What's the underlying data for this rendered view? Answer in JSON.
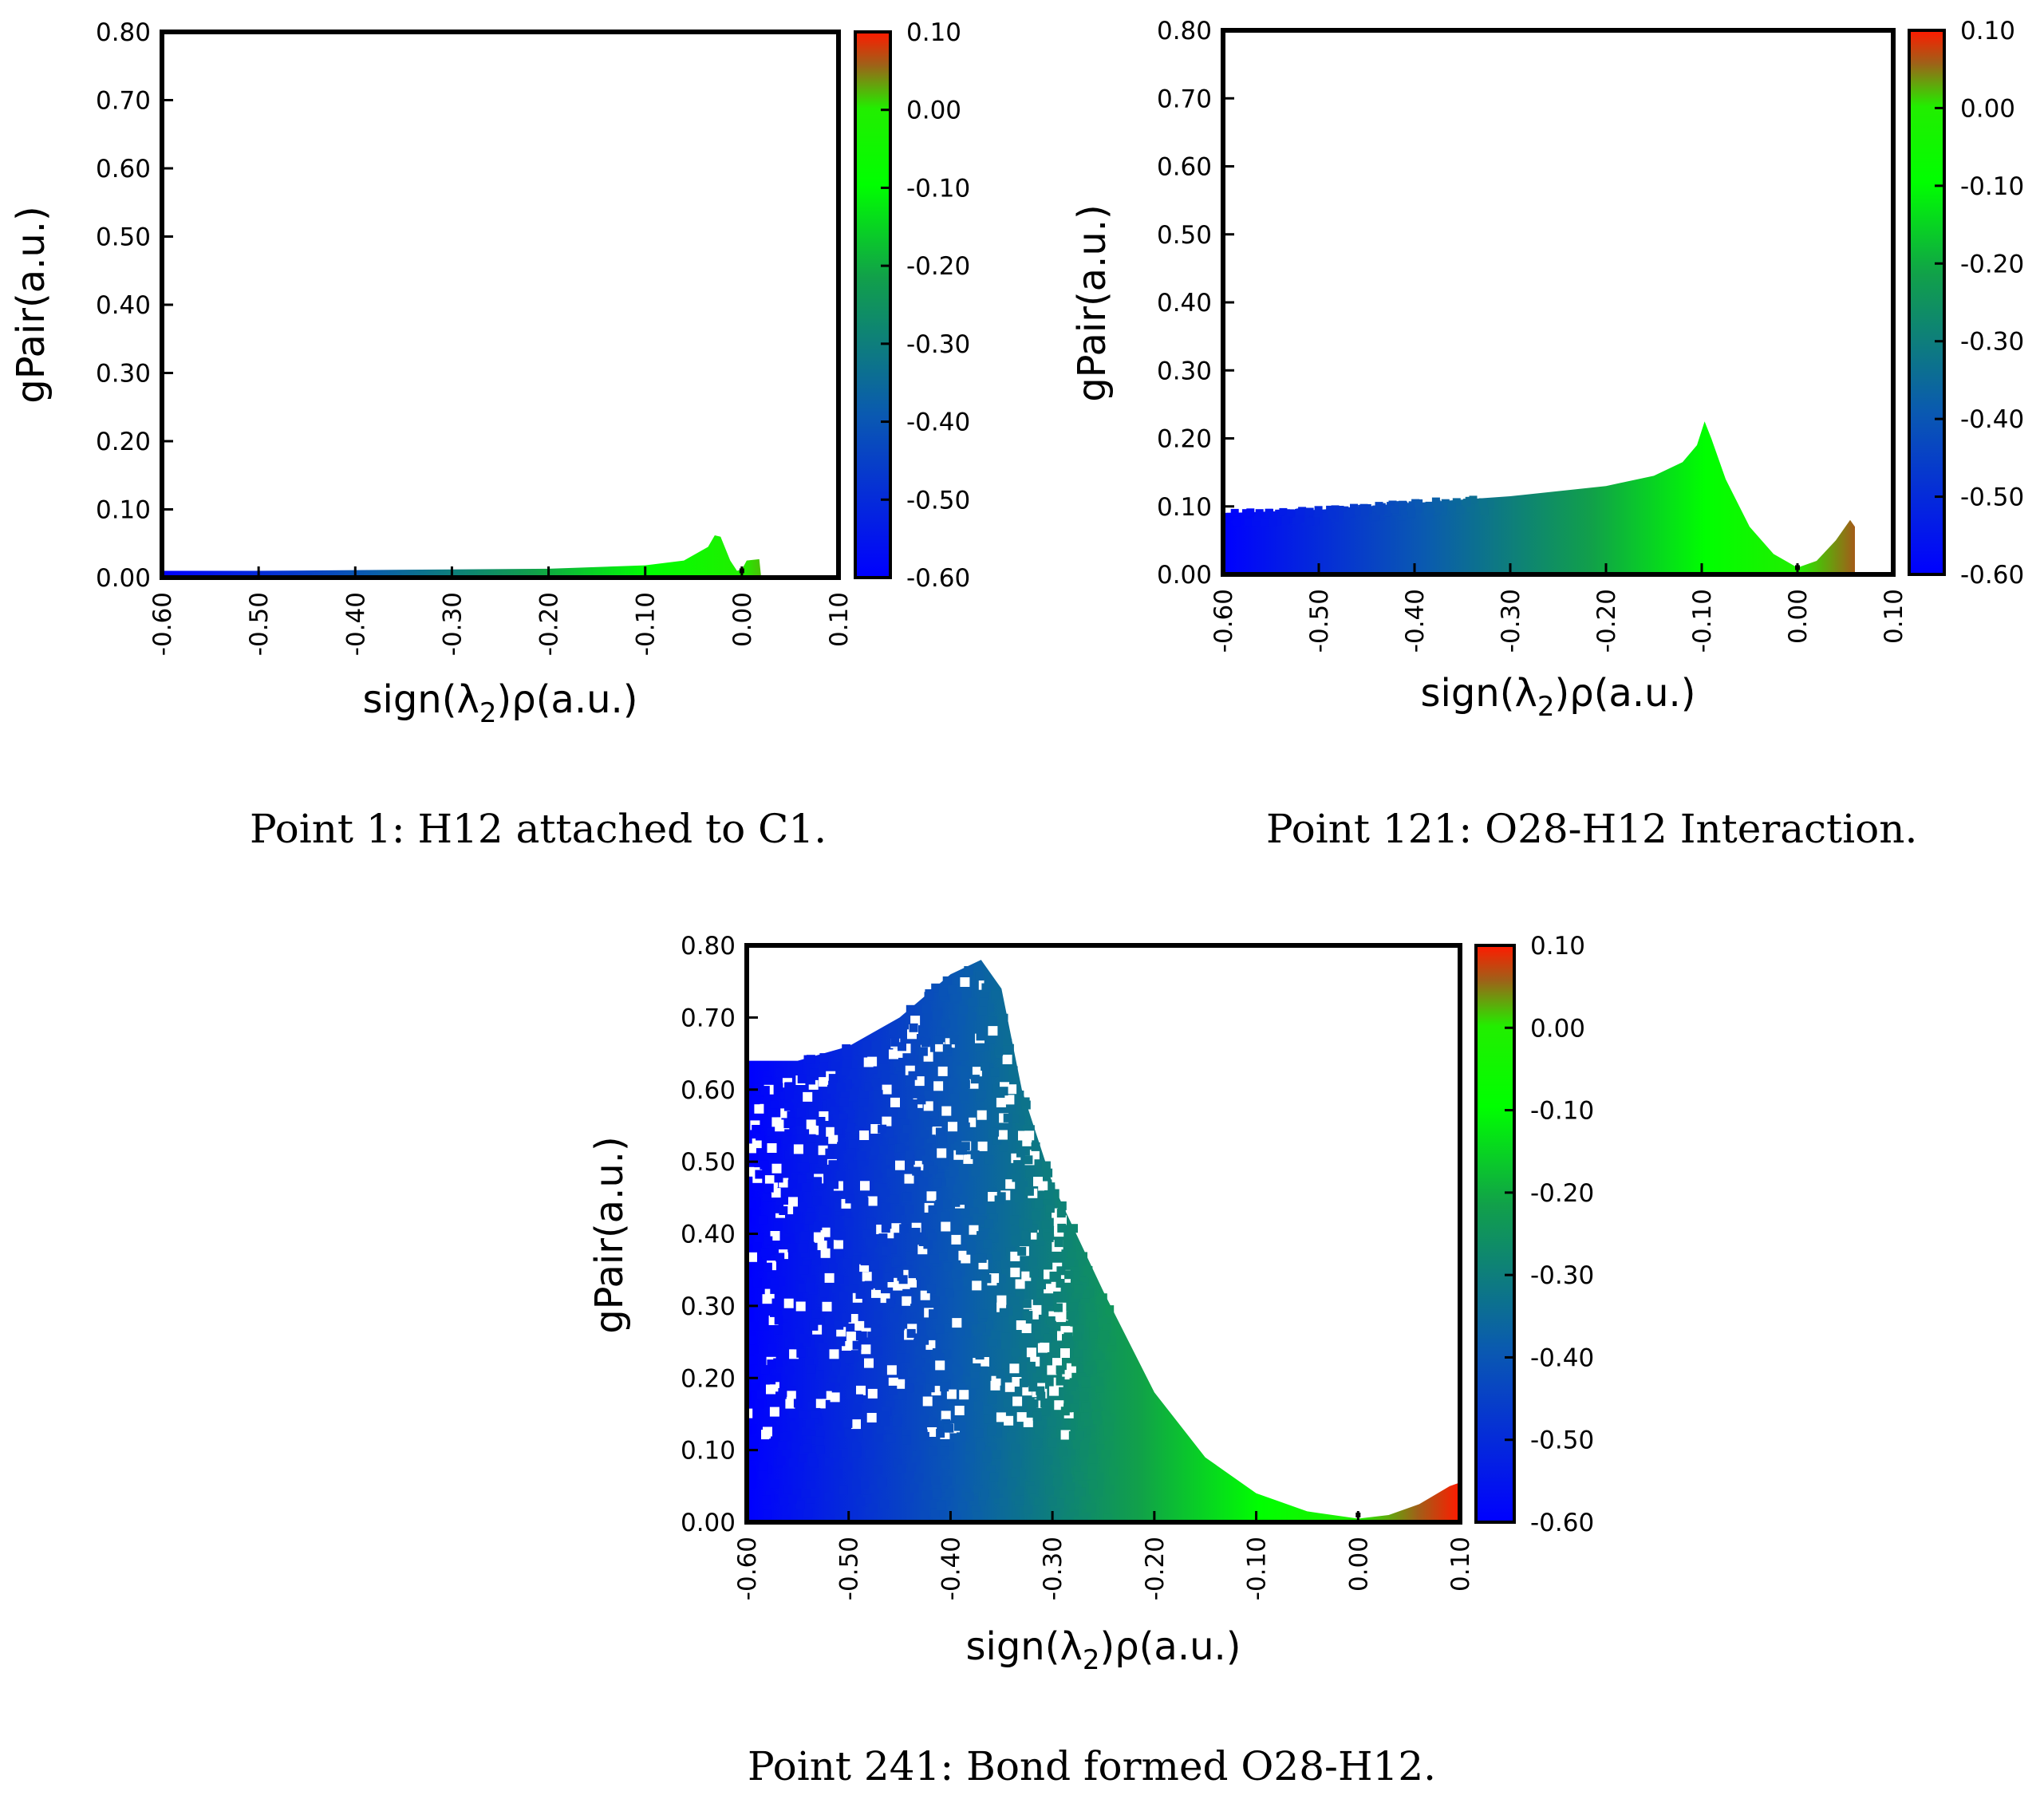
{
  "chart_data": [
    {
      "type": "scatter",
      "caption": "Point 1: H12 attached to C1.",
      "xlabel": "sign(λ2)ρ(a.u.)",
      "ylabel": "gPair(a.u.)",
      "xlim": [
        -0.6,
        0.1
      ],
      "ylim": [
        0.0,
        0.8
      ],
      "x_ticks": [
        "-0.60",
        "-0.50",
        "-0.40",
        "-0.30",
        "-0.20",
        "-0.10",
        "0.00",
        "0.10"
      ],
      "y_ticks": [
        "0.00",
        "0.10",
        "0.20",
        "0.30",
        "0.40",
        "0.50",
        "0.60",
        "0.70",
        "0.80"
      ],
      "colorbar": {
        "range": [
          -0.6,
          0.1
        ],
        "ticks": [
          "0.10",
          "0.00",
          "-0.10",
          "-0.20",
          "-0.30",
          "-0.40",
          "-0.50",
          "-0.60"
        ]
      },
      "envelope": [
        [
          -0.6,
          0.01
        ],
        [
          -0.5,
          0.01
        ],
        [
          -0.4,
          0.011
        ],
        [
          -0.3,
          0.012
        ],
        [
          -0.2,
          0.013
        ],
        [
          -0.1,
          0.018
        ],
        [
          -0.06,
          0.025
        ],
        [
          -0.035,
          0.045
        ],
        [
          -0.028,
          0.062
        ],
        [
          -0.022,
          0.06
        ],
        [
          -0.012,
          0.025
        ],
        [
          -0.005,
          0.01
        ],
        [
          0.0,
          0.012
        ],
        [
          0.005,
          0.025
        ],
        [
          0.018,
          0.027
        ],
        [
          0.02,
          0.0
        ]
      ]
    },
    {
      "type": "scatter",
      "caption": "Point 121: O28-H12 Interaction.",
      "xlabel": "sign(λ2)ρ(a.u.)",
      "ylabel": "gPair(a.u.)",
      "xlim": [
        -0.6,
        0.1
      ],
      "ylim": [
        0.0,
        0.8
      ],
      "x_ticks": [
        "-0.60",
        "-0.50",
        "-0.40",
        "-0.30",
        "-0.20",
        "-0.10",
        "0.00",
        "0.10"
      ],
      "y_ticks": [
        "0.00",
        "0.10",
        "0.20",
        "0.30",
        "0.40",
        "0.50",
        "0.60",
        "0.70",
        "0.80"
      ],
      "colorbar": {
        "range": [
          -0.6,
          0.1
        ],
        "ticks": [
          "0.10",
          "0.00",
          "-0.10",
          "-0.20",
          "-0.30",
          "-0.40",
          "-0.50",
          "-0.60"
        ]
      },
      "envelope": [
        [
          -0.6,
          0.09
        ],
        [
          -0.5,
          0.095
        ],
        [
          -0.4,
          0.105
        ],
        [
          -0.3,
          0.115
        ],
        [
          -0.2,
          0.13
        ],
        [
          -0.15,
          0.145
        ],
        [
          -0.12,
          0.165
        ],
        [
          -0.105,
          0.19
        ],
        [
          -0.097,
          0.225
        ],
        [
          -0.09,
          0.2
        ],
        [
          -0.075,
          0.14
        ],
        [
          -0.05,
          0.07
        ],
        [
          -0.025,
          0.03
        ],
        [
          0.0,
          0.01
        ],
        [
          0.02,
          0.02
        ],
        [
          0.04,
          0.05
        ],
        [
          0.055,
          0.08
        ],
        [
          0.06,
          0.07
        ],
        [
          0.06,
          0.0
        ]
      ]
    },
    {
      "type": "scatter",
      "caption": "Point 241: Bond formed O28-H12.",
      "xlabel": "sign(λ2)ρ(a.u.)",
      "ylabel": "gPair(a.u.)",
      "xlim": [
        -0.6,
        0.1
      ],
      "ylim": [
        0.0,
        0.8
      ],
      "x_ticks": [
        "-0.60",
        "-0.50",
        "-0.40",
        "-0.30",
        "-0.20",
        "-0.10",
        "0.00",
        "0.10"
      ],
      "y_ticks": [
        "0.00",
        "0.10",
        "0.20",
        "0.30",
        "0.40",
        "0.50",
        "0.60",
        "0.70",
        "0.80"
      ],
      "colorbar": {
        "range": [
          -0.6,
          0.1
        ],
        "ticks": [
          "0.10",
          "0.00",
          "-0.10",
          "-0.20",
          "-0.30",
          "-0.40",
          "-0.50",
          "-0.60"
        ]
      },
      "envelope": [
        [
          -0.6,
          0.64
        ],
        [
          -0.55,
          0.64
        ],
        [
          -0.5,
          0.66
        ],
        [
          -0.45,
          0.7
        ],
        [
          -0.4,
          0.76
        ],
        [
          -0.37,
          0.78
        ],
        [
          -0.35,
          0.74
        ],
        [
          -0.33,
          0.6
        ],
        [
          -0.3,
          0.47
        ],
        [
          -0.25,
          0.32
        ],
        [
          -0.2,
          0.18
        ],
        [
          -0.15,
          0.09
        ],
        [
          -0.1,
          0.04
        ],
        [
          -0.05,
          0.015
        ],
        [
          0.0,
          0.005
        ],
        [
          0.03,
          0.01
        ],
        [
          0.06,
          0.025
        ],
        [
          0.09,
          0.05
        ],
        [
          0.1,
          0.055
        ],
        [
          0.1,
          0.0
        ]
      ]
    }
  ]
}
